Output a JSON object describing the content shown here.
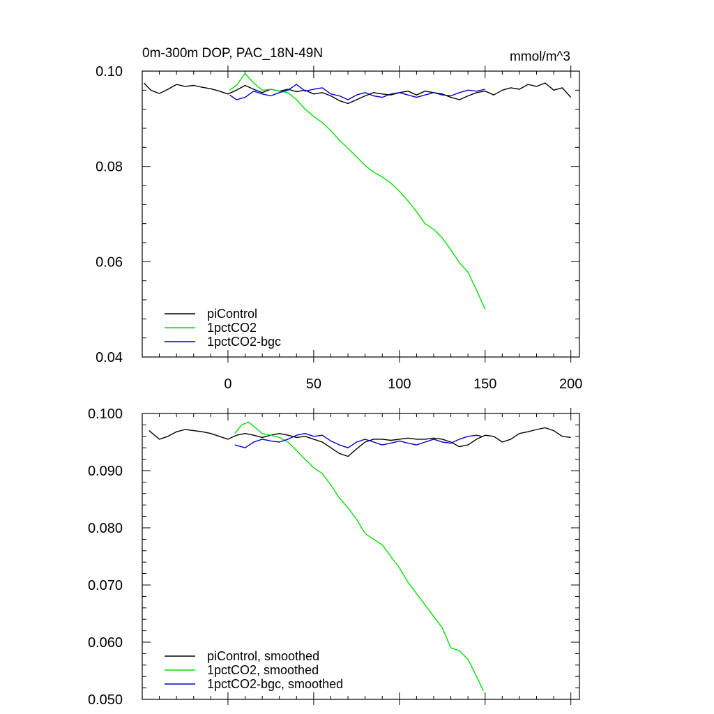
{
  "header": {
    "title": "0m-300m DOP, PAC_18N-49N",
    "units": "mmol/m^3"
  },
  "chart_data": [
    {
      "type": "line",
      "panel": "top",
      "title": "0m-300m DOP, PAC_18N-49N",
      "units": "mmol/m^3",
      "xlim": [
        -50,
        205
      ],
      "ylim": [
        0.04,
        0.1
      ],
      "x_ticks": [
        0,
        50,
        100,
        150,
        200
      ],
      "x_tick_labels": [
        "0",
        "50",
        "100",
        "150",
        "200"
      ],
      "y_ticks": [
        0.04,
        0.06,
        0.08,
        0.1
      ],
      "y_tick_labels": [
        "0.04",
        "0.06",
        "0.08",
        "0.10"
      ],
      "legend_position": "bottom-left",
      "series": [
        {
          "name": "piControl",
          "color": "#000000",
          "x": [
            -49,
            -45,
            -40,
            -35,
            -30,
            -25,
            -20,
            -15,
            -10,
            -5,
            0,
            5,
            10,
            15,
            20,
            25,
            30,
            35,
            40,
            45,
            50,
            55,
            60,
            65,
            70,
            75,
            80,
            85,
            90,
            95,
            100,
            105,
            110,
            115,
            120,
            125,
            130,
            135,
            140,
            145,
            150,
            155,
            160,
            165,
            170,
            175,
            180,
            185,
            190,
            195,
            200
          ],
          "values": [
            0.0975,
            0.096,
            0.0953,
            0.0962,
            0.0972,
            0.0968,
            0.097,
            0.0966,
            0.0963,
            0.0958,
            0.0952,
            0.096,
            0.097,
            0.0962,
            0.0955,
            0.0962,
            0.0958,
            0.0962,
            0.0957,
            0.096,
            0.0952,
            0.0955,
            0.0948,
            0.0938,
            0.0932,
            0.094,
            0.0948,
            0.0955,
            0.0952,
            0.095,
            0.0955,
            0.0958,
            0.095,
            0.0958,
            0.0955,
            0.0952,
            0.0945,
            0.094,
            0.0948,
            0.0955,
            0.0958,
            0.095,
            0.096,
            0.0965,
            0.0962,
            0.0972,
            0.0968,
            0.0975,
            0.096,
            0.0965,
            0.0945
          ]
        },
        {
          "name": "1pctCO2",
          "color": "#00e000",
          "x": [
            1,
            5,
            10,
            15,
            20,
            25,
            30,
            35,
            40,
            45,
            50,
            55,
            60,
            65,
            70,
            75,
            80,
            85,
            90,
            95,
            100,
            105,
            110,
            115,
            120,
            125,
            130,
            135,
            140,
            145,
            150
          ],
          "values": [
            0.096,
            0.097,
            0.0995,
            0.0975,
            0.096,
            0.0962,
            0.0958,
            0.0955,
            0.094,
            0.092,
            0.0905,
            0.0892,
            0.0875,
            0.0855,
            0.0838,
            0.082,
            0.0802,
            0.0788,
            0.0778,
            0.0765,
            0.0748,
            0.0728,
            0.0705,
            0.068,
            0.0668,
            0.065,
            0.0625,
            0.0598,
            0.0578,
            0.054,
            0.05
          ]
        },
        {
          "name": "1pctCO2-bgc",
          "color": "#0000cc",
          "x": [
            1,
            5,
            10,
            15,
            20,
            25,
            30,
            35,
            40,
            45,
            50,
            55,
            60,
            65,
            70,
            75,
            80,
            85,
            90,
            95,
            100,
            105,
            110,
            115,
            120,
            125,
            130,
            135,
            140,
            145,
            150
          ],
          "values": [
            0.095,
            0.094,
            0.0945,
            0.0958,
            0.0952,
            0.0948,
            0.0955,
            0.096,
            0.0972,
            0.0958,
            0.0962,
            0.0965,
            0.0952,
            0.0948,
            0.094,
            0.095,
            0.0955,
            0.0948,
            0.0945,
            0.0952,
            0.0955,
            0.095,
            0.0945,
            0.095,
            0.0955,
            0.095,
            0.0948,
            0.0955,
            0.096,
            0.0958,
            0.0962
          ]
        }
      ]
    },
    {
      "type": "line",
      "panel": "bottom",
      "xlim": [
        -50,
        205
      ],
      "ylim": [
        0.05,
        0.1
      ],
      "x_ticks": [
        0,
        50,
        100,
        150,
        200
      ],
      "y_ticks": [
        0.05,
        0.06,
        0.07,
        0.08,
        0.09,
        0.1
      ],
      "y_tick_labels": [
        "0.050",
        "0.060",
        "0.070",
        "0.080",
        "0.090",
        "0.100"
      ],
      "legend_position": "bottom-left",
      "series": [
        {
          "name": "piControl, smoothed",
          "color": "#000000",
          "x": [
            -46,
            -40,
            -35,
            -30,
            -25,
            -20,
            -15,
            -10,
            -5,
            0,
            5,
            10,
            15,
            20,
            25,
            30,
            35,
            40,
            45,
            50,
            55,
            60,
            65,
            70,
            75,
            80,
            85,
            90,
            95,
            100,
            105,
            110,
            115,
            120,
            125,
            130,
            135,
            140,
            145,
            150,
            155,
            160,
            165,
            170,
            175,
            180,
            185,
            190,
            195,
            200
          ],
          "values": [
            0.097,
            0.0955,
            0.096,
            0.0968,
            0.0972,
            0.097,
            0.0968,
            0.0965,
            0.096,
            0.0955,
            0.0962,
            0.0965,
            0.0962,
            0.0958,
            0.0962,
            0.0965,
            0.0962,
            0.0958,
            0.096,
            0.0955,
            0.095,
            0.094,
            0.093,
            0.0925,
            0.0938,
            0.095,
            0.0955,
            0.0955,
            0.0953,
            0.0955,
            0.0957,
            0.0955,
            0.0955,
            0.0957,
            0.0955,
            0.095,
            0.0942,
            0.0945,
            0.0955,
            0.0962,
            0.096,
            0.095,
            0.0955,
            0.0965,
            0.0968,
            0.0972,
            0.0975,
            0.097,
            0.096,
            0.0958
          ]
        },
        {
          "name": "1pctCO2, smoothed",
          "color": "#00e000",
          "x": [
            4,
            8,
            12,
            16,
            20,
            25,
            30,
            35,
            40,
            45,
            50,
            55,
            60,
            65,
            70,
            75,
            80,
            85,
            90,
            95,
            100,
            105,
            110,
            115,
            120,
            125,
            130,
            135,
            140,
            145,
            149
          ],
          "values": [
            0.0965,
            0.098,
            0.0985,
            0.0975,
            0.0965,
            0.0962,
            0.0958,
            0.095,
            0.0935,
            0.092,
            0.0905,
            0.0895,
            0.0875,
            0.0852,
            0.0835,
            0.0815,
            0.079,
            0.078,
            0.077,
            0.075,
            0.073,
            0.0705,
            0.0685,
            0.0665,
            0.0645,
            0.0625,
            0.059,
            0.0585,
            0.057,
            0.054,
            0.0515
          ]
        },
        {
          "name": "1pctCO2-bgc, smoothed",
          "color": "#0000cc",
          "x": [
            4,
            10,
            15,
            20,
            25,
            30,
            35,
            40,
            45,
            50,
            55,
            60,
            65,
            70,
            75,
            80,
            85,
            90,
            95,
            100,
            105,
            110,
            115,
            120,
            125,
            130,
            135,
            140,
            145,
            148
          ],
          "values": [
            0.0945,
            0.094,
            0.095,
            0.0955,
            0.0952,
            0.095,
            0.0955,
            0.0962,
            0.0965,
            0.096,
            0.0962,
            0.0952,
            0.0945,
            0.094,
            0.095,
            0.0955,
            0.095,
            0.0945,
            0.0948,
            0.0952,
            0.0948,
            0.0945,
            0.095,
            0.0955,
            0.095,
            0.0948,
            0.0955,
            0.096,
            0.0962,
            0.096
          ]
        }
      ]
    }
  ]
}
